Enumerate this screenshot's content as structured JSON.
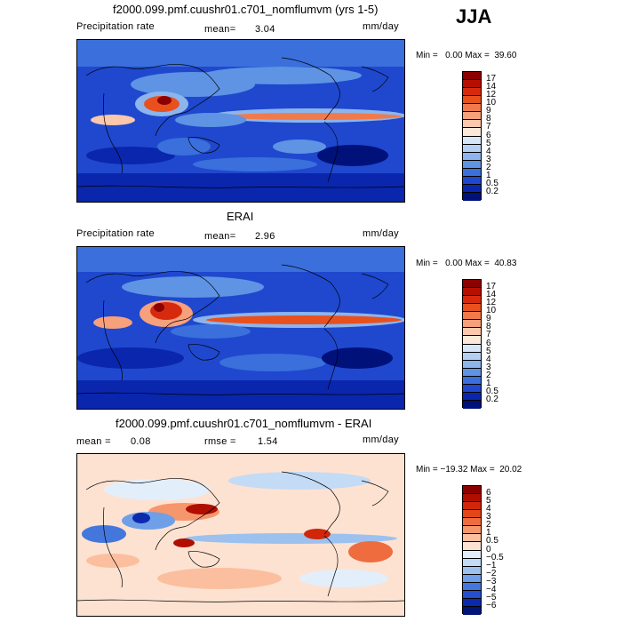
{
  "season": "JJA",
  "panels": [
    {
      "title": "f2000.099.pmf.cuushr01.c701_nomflumvm (yrs 1-5)",
      "left_label": "Precipitation rate",
      "center_label": "mean=",
      "center_value": "3.04",
      "units": "mm/day",
      "minmax": "Min =   0.00 Max =  39.60",
      "colorbar": {
        "labels": [
          "17",
          "14",
          "12",
          "10",
          "9",
          "8",
          "7",
          "6",
          "5",
          "4",
          "3",
          "2",
          "1",
          "0.5",
          "0.2"
        ],
        "colors": [
          "#8b0000",
          "#b40f00",
          "#d62a0e",
          "#e8501e",
          "#f07a4c",
          "#f6a07c",
          "#fbc8ac",
          "#fbe8d8",
          "#d7e6f7",
          "#b4cff2",
          "#8db5ec",
          "#5f93e4",
          "#3a6fdc",
          "#1f48cf",
          "#0a26ad",
          "#00117a"
        ]
      }
    },
    {
      "title": "ERAI",
      "left_label": "Precipitation rate",
      "center_label": "mean=",
      "center_value": "2.96",
      "units": "mm/day",
      "minmax": "Min =   0.00 Max =  40.83",
      "colorbar": {
        "labels": [
          "17",
          "14",
          "12",
          "10",
          "9",
          "8",
          "7",
          "6",
          "5",
          "4",
          "3",
          "2",
          "1",
          "0.5",
          "0.2"
        ],
        "colors": [
          "#8b0000",
          "#b40f00",
          "#d62a0e",
          "#e8501e",
          "#f07a4c",
          "#f6a07c",
          "#fbc8ac",
          "#fbe8d8",
          "#d7e6f7",
          "#b4cff2",
          "#8db5ec",
          "#5f93e4",
          "#3a6fdc",
          "#1f48cf",
          "#0a26ad",
          "#00117a"
        ]
      }
    },
    {
      "title": "f2000.099.pmf.cuushr01.c701_nomflumvm - ERAI",
      "left_label": "mean =",
      "left_value": "0.08",
      "center_label": "rmse =",
      "center_value": "1.54",
      "units": "mm/day",
      "minmax": "Min = −19.32 Max =  20.02",
      "colorbar": {
        "labels": [
          "6",
          "5",
          "4",
          "3",
          "2",
          "1",
          "0.5",
          "0",
          "−0.5",
          "−1",
          "−2",
          "−3",
          "−4",
          "−5",
          "−6"
        ],
        "colors": [
          "#8b0000",
          "#b00e00",
          "#d0260a",
          "#e4461a",
          "#ef6c3f",
          "#f6966c",
          "#fbbf9f",
          "#fde2d2",
          "#e3eefb",
          "#c3dbf5",
          "#9cc1ef",
          "#6f9fe6",
          "#4477dc",
          "#244fcd",
          "#0c2aae",
          "#001577"
        ]
      }
    }
  ]
}
